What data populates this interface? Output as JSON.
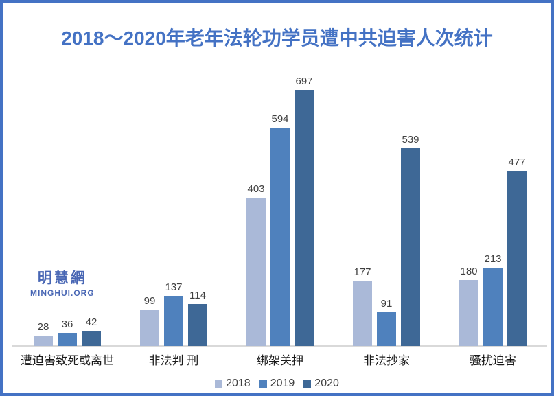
{
  "title": {
    "text": "2018～2020年老年法轮功学员遭中共迫害人次统计"
  },
  "logo": {
    "chinese": "明慧網",
    "latin": "MINGHUI.ORG"
  },
  "colors": {
    "border": "#4472c4",
    "title": "#4472c4",
    "logo": "#4866b4",
    "axis_line": "#d9d9d9",
    "data_label": "#404040",
    "category_label": "#1a1a1a",
    "legend_text": "#404040",
    "background": "#ffffff"
  },
  "chart_data": {
    "type": "bar",
    "title": "2018～2020年老年法轮功学员遭中共迫害人次统计",
    "categories": [
      "遭迫害致死或离世",
      "非法判 刑",
      "绑架关押",
      "非法抄家",
      "骚扰迫害"
    ],
    "series": [
      {
        "name": "2018",
        "color": "#aab9d8",
        "values": [
          28,
          99,
          403,
          177,
          180
        ]
      },
      {
        "name": "2019",
        "color": "#4f81bd",
        "values": [
          36,
          137,
          594,
          91,
          213
        ]
      },
      {
        "name": "2020",
        "color": "#3e6896",
        "values": [
          42,
          114,
          697,
          539,
          477
        ]
      }
    ],
    "xlabel": "",
    "ylabel": "",
    "ylim": [
      0,
      730
    ],
    "grid": false,
    "y_axis_visible": false,
    "legend_position": "bottom",
    "data_labels": true
  }
}
